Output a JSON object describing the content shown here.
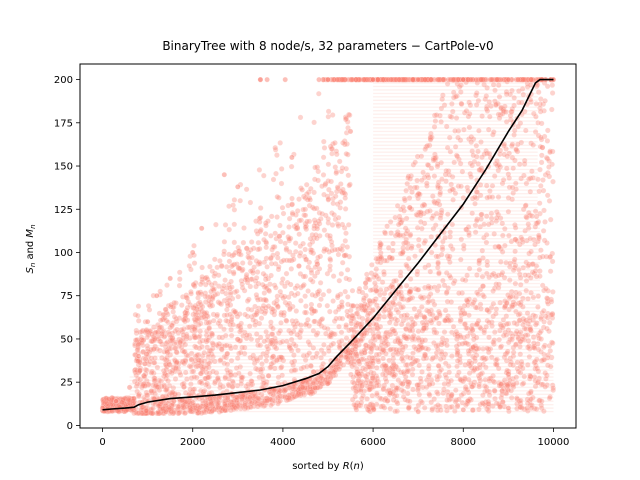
{
  "chart_data": {
    "type": "scatter",
    "title": "BinaryTree with 8 node/s, 32 parameters − CartPole-v0",
    "xlabel": "sorted by R(n)",
    "ylabel": "S_n and M_n",
    "xlim": [
      -500,
      10500
    ],
    "ylim": [
      -1.5,
      209
    ],
    "xticks": [
      0,
      2000,
      4000,
      6000,
      8000,
      10000
    ],
    "yticks": [
      0,
      25,
      50,
      75,
      100,
      125,
      150,
      175,
      200
    ],
    "grid": false,
    "legend": "none",
    "colors": {
      "scatter": "#fa8072",
      "mean_line": "#000000"
    },
    "series": [
      {
        "type": "scatter",
        "description_points": [
          {
            "x": 0,
            "y": 10
          },
          {
            "x": 300,
            "y": 14
          },
          {
            "x": 600,
            "y": 22
          },
          {
            "x": 800,
            "y": 40
          },
          {
            "x": 1000,
            "y": 60
          },
          {
            "x": 1200,
            "y": 75
          },
          {
            "x": 1500,
            "y": 85
          },
          {
            "x": 2000,
            "y": 100
          },
          {
            "x": 2200,
            "y": 114
          },
          {
            "x": 2700,
            "y": 145
          },
          {
            "x": 3000,
            "y": 138
          },
          {
            "x": 3500,
            "y": 200
          },
          {
            "x": 4200,
            "y": 155
          },
          {
            "x": 4800,
            "y": 200
          },
          {
            "x": 5000,
            "y": 200
          },
          {
            "x": 5500,
            "y": 170
          },
          {
            "x": 6000,
            "y": 200
          },
          {
            "x": 7000,
            "y": 200
          },
          {
            "x": 8000,
            "y": 200
          },
          {
            "x": 9000,
            "y": 200
          },
          {
            "x": 10000,
            "y": 200
          },
          {
            "x": 7000,
            "y": 8
          },
          {
            "x": 8000,
            "y": 9
          },
          {
            "x": 9000,
            "y": 10
          }
        ]
      },
      {
        "type": "line",
        "x": [
          0,
          200,
          500,
          700,
          800,
          1000,
          1500,
          2000,
          2500,
          3000,
          3500,
          4000,
          4500,
          4800,
          5000,
          5200,
          5500,
          6000,
          6500,
          7000,
          7500,
          8000,
          8500,
          9000,
          9300,
          9600,
          9700,
          10000
        ],
        "y": [
          9,
          9.5,
          10,
          10.5,
          12,
          13.5,
          15.5,
          16.5,
          17.5,
          19,
          20.5,
          23,
          27,
          30,
          34,
          40,
          48,
          62,
          78,
          94,
          111,
          128,
          148,
          170,
          182,
          198,
          200,
          200
        ]
      }
    ]
  }
}
